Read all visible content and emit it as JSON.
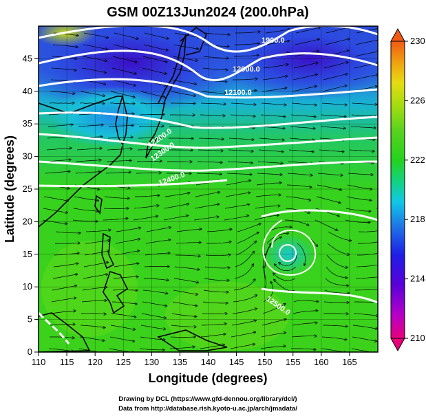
{
  "title": "GSM 00Z13Jun2024 (200.0hPa)",
  "axes": {
    "x_title": "Longitude (degrees)",
    "y_title": "Latitude  (degrees)",
    "x_ticks": [
      "110",
      "115",
      "120",
      "125",
      "130",
      "135",
      "140",
      "145",
      "150",
      "155",
      "160",
      "165"
    ],
    "y_ticks": [
      "0",
      "5",
      "10",
      "15",
      "20",
      "25",
      "30",
      "35",
      "40",
      "45"
    ]
  },
  "colorbar": {
    "labels": [
      "230",
      "226",
      "222",
      "218",
      "214",
      "210"
    ],
    "min": 210,
    "max": 230,
    "colors": [
      "#e8007a",
      "#b400c8",
      "#5a00d8",
      "#1e1ee6",
      "#1e78e6",
      "#10c8e6",
      "#10d28c",
      "#24d21e",
      "#5ad21e",
      "#a0dc10",
      "#e6dc10",
      "#f0a010",
      "#f05a14"
    ]
  },
  "contours": {
    "labels": [
      "1900.0",
      "12000.0",
      "12100.0",
      "12200.0",
      "12300.0",
      "12400.0",
      "12500.0"
    ]
  },
  "credits": {
    "line1": "Drawing by DCL (https://www.gfd-dennou.org/library/dcl/)",
    "line2": "Data from http://database.rish.kyoto-u.ac.jp/arch/jmadata/"
  }
}
